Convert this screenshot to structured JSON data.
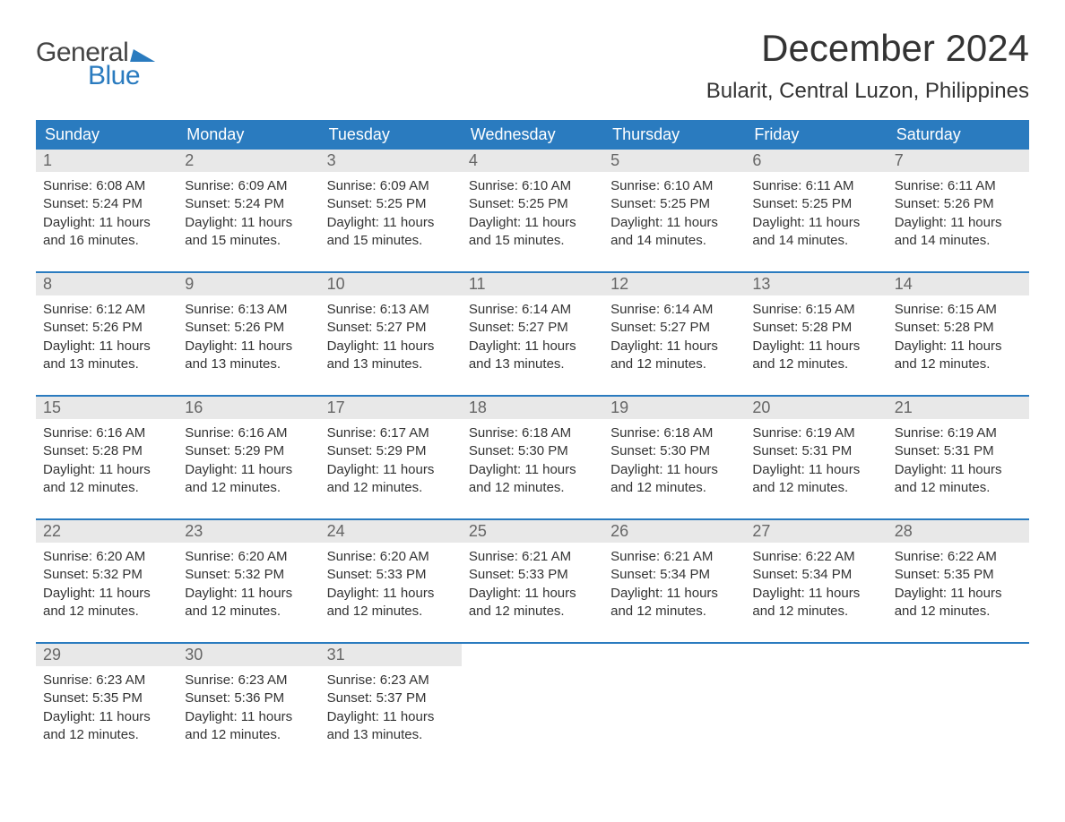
{
  "brand": {
    "line1": "General",
    "line2": "Blue"
  },
  "title": "December 2024",
  "location": "Bularit, Central Luzon, Philippines",
  "colors": {
    "header_bg": "#2a7bbf",
    "header_text": "#ffffff",
    "daynum_bg": "#e8e8e8",
    "daynum_text": "#666666",
    "body_text": "#333333",
    "page_bg": "#ffffff"
  },
  "fonts": {
    "title_size": 42,
    "location_size": 24,
    "header_size": 18,
    "body_size": 15
  },
  "day_headers": [
    "Sunday",
    "Monday",
    "Tuesday",
    "Wednesday",
    "Thursday",
    "Friday",
    "Saturday"
  ],
  "days": [
    {
      "n": "1",
      "sr": "6:08 AM",
      "ss": "5:24 PM",
      "dl": "11 hours and 16 minutes."
    },
    {
      "n": "2",
      "sr": "6:09 AM",
      "ss": "5:24 PM",
      "dl": "11 hours and 15 minutes."
    },
    {
      "n": "3",
      "sr": "6:09 AM",
      "ss": "5:25 PM",
      "dl": "11 hours and 15 minutes."
    },
    {
      "n": "4",
      "sr": "6:10 AM",
      "ss": "5:25 PM",
      "dl": "11 hours and 15 minutes."
    },
    {
      "n": "5",
      "sr": "6:10 AM",
      "ss": "5:25 PM",
      "dl": "11 hours and 14 minutes."
    },
    {
      "n": "6",
      "sr": "6:11 AM",
      "ss": "5:25 PM",
      "dl": "11 hours and 14 minutes."
    },
    {
      "n": "7",
      "sr": "6:11 AM",
      "ss": "5:26 PM",
      "dl": "11 hours and 14 minutes."
    },
    {
      "n": "8",
      "sr": "6:12 AM",
      "ss": "5:26 PM",
      "dl": "11 hours and 13 minutes."
    },
    {
      "n": "9",
      "sr": "6:13 AM",
      "ss": "5:26 PM",
      "dl": "11 hours and 13 minutes."
    },
    {
      "n": "10",
      "sr": "6:13 AM",
      "ss": "5:27 PM",
      "dl": "11 hours and 13 minutes."
    },
    {
      "n": "11",
      "sr": "6:14 AM",
      "ss": "5:27 PM",
      "dl": "11 hours and 13 minutes."
    },
    {
      "n": "12",
      "sr": "6:14 AM",
      "ss": "5:27 PM",
      "dl": "11 hours and 12 minutes."
    },
    {
      "n": "13",
      "sr": "6:15 AM",
      "ss": "5:28 PM",
      "dl": "11 hours and 12 minutes."
    },
    {
      "n": "14",
      "sr": "6:15 AM",
      "ss": "5:28 PM",
      "dl": "11 hours and 12 minutes."
    },
    {
      "n": "15",
      "sr": "6:16 AM",
      "ss": "5:28 PM",
      "dl": "11 hours and 12 minutes."
    },
    {
      "n": "16",
      "sr": "6:16 AM",
      "ss": "5:29 PM",
      "dl": "11 hours and 12 minutes."
    },
    {
      "n": "17",
      "sr": "6:17 AM",
      "ss": "5:29 PM",
      "dl": "11 hours and 12 minutes."
    },
    {
      "n": "18",
      "sr": "6:18 AM",
      "ss": "5:30 PM",
      "dl": "11 hours and 12 minutes."
    },
    {
      "n": "19",
      "sr": "6:18 AM",
      "ss": "5:30 PM",
      "dl": "11 hours and 12 minutes."
    },
    {
      "n": "20",
      "sr": "6:19 AM",
      "ss": "5:31 PM",
      "dl": "11 hours and 12 minutes."
    },
    {
      "n": "21",
      "sr": "6:19 AM",
      "ss": "5:31 PM",
      "dl": "11 hours and 12 minutes."
    },
    {
      "n": "22",
      "sr": "6:20 AM",
      "ss": "5:32 PM",
      "dl": "11 hours and 12 minutes."
    },
    {
      "n": "23",
      "sr": "6:20 AM",
      "ss": "5:32 PM",
      "dl": "11 hours and 12 minutes."
    },
    {
      "n": "24",
      "sr": "6:20 AM",
      "ss": "5:33 PM",
      "dl": "11 hours and 12 minutes."
    },
    {
      "n": "25",
      "sr": "6:21 AM",
      "ss": "5:33 PM",
      "dl": "11 hours and 12 minutes."
    },
    {
      "n": "26",
      "sr": "6:21 AM",
      "ss": "5:34 PM",
      "dl": "11 hours and 12 minutes."
    },
    {
      "n": "27",
      "sr": "6:22 AM",
      "ss": "5:34 PM",
      "dl": "11 hours and 12 minutes."
    },
    {
      "n": "28",
      "sr": "6:22 AM",
      "ss": "5:35 PM",
      "dl": "11 hours and 12 minutes."
    },
    {
      "n": "29",
      "sr": "6:23 AM",
      "ss": "5:35 PM",
      "dl": "11 hours and 12 minutes."
    },
    {
      "n": "30",
      "sr": "6:23 AM",
      "ss": "5:36 PM",
      "dl": "11 hours and 12 minutes."
    },
    {
      "n": "31",
      "sr": "6:23 AM",
      "ss": "5:37 PM",
      "dl": "11 hours and 13 minutes."
    }
  ],
  "labels": {
    "sunrise": "Sunrise:",
    "sunset": "Sunset:",
    "daylight": "Daylight:"
  }
}
